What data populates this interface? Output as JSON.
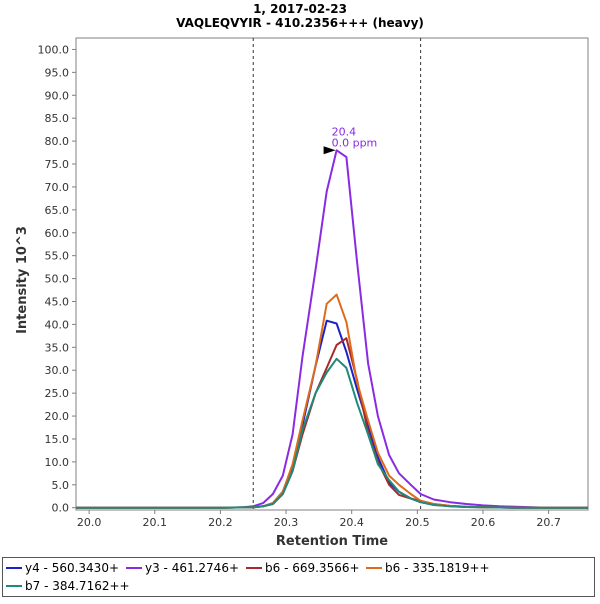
{
  "chart_data": {
    "type": "line",
    "title": "1, 2017-02-23",
    "subtitle": "VAQLEQVYIR - 410.2356+++ (heavy)",
    "xlabel": "Retention Time",
    "ylabel": "Intensity 10^3",
    "xlim": [
      19.98,
      20.76
    ],
    "ylim": [
      -0.5,
      102.5
    ],
    "xticks": [
      "20.0",
      "20.1",
      "20.2",
      "20.3",
      "20.4",
      "20.5",
      "20.6",
      "20.7"
    ],
    "yticks": [
      "0.0",
      "5.0",
      "10.0",
      "15.0",
      "20.0",
      "25.0",
      "30.0",
      "35.0",
      "40.0",
      "45.0",
      "50.0",
      "55.0",
      "60.0",
      "65.0",
      "70.0",
      "75.0",
      "80.0",
      "85.0",
      "90.0",
      "95.0",
      "100.0"
    ],
    "integration_boundaries": [
      20.25,
      20.505
    ],
    "grid": false,
    "legend_position": "bottom",
    "peak_annotation": {
      "x": 20.377,
      "y": 78.0,
      "rt_label": "20.4",
      "ppm_label": "0.0 ppm",
      "color": "#8A2BE2"
    },
    "series": [
      {
        "name": "y4 - 560.3430+",
        "color": "#1A23C8",
        "x": [
          19.98,
          20.0,
          20.1,
          20.2,
          20.25,
          20.265,
          20.28,
          20.295,
          20.31,
          20.325,
          20.345,
          20.362,
          20.377,
          20.392,
          20.408,
          20.425,
          20.44,
          20.457,
          20.472,
          20.49,
          20.505,
          20.525,
          20.55,
          20.575,
          20.6,
          20.625,
          20.65,
          20.7,
          20.76
        ],
        "values": [
          0,
          0,
          0,
          0,
          0.1,
          0.3,
          1.0,
          3.5,
          9.0,
          18.0,
          31.0,
          40.8,
          40.2,
          34.0,
          26.0,
          18.0,
          11.0,
          5.5,
          3.5,
          2.0,
          1.2,
          0.7,
          0.3,
          0.15,
          0.1,
          0.05,
          0,
          0,
          0
        ]
      },
      {
        "name": "y3 - 461.2746+",
        "color": "#8A2BE2",
        "x": [
          19.98,
          20.0,
          20.1,
          20.2,
          20.235,
          20.25,
          20.265,
          20.28,
          20.295,
          20.31,
          20.325,
          20.345,
          20.362,
          20.377,
          20.392,
          20.408,
          20.425,
          20.44,
          20.457,
          20.472,
          20.49,
          20.505,
          20.525,
          20.55,
          20.575,
          20.6,
          20.625,
          20.65,
          20.7,
          20.76
        ],
        "values": [
          0,
          0,
          0,
          0,
          0.1,
          0.3,
          1.0,
          3.0,
          7.0,
          16.0,
          33.0,
          52.0,
          69.0,
          78.0,
          76.5,
          54.0,
          31.5,
          20.0,
          11.5,
          7.5,
          5.0,
          3.0,
          1.8,
          1.2,
          0.8,
          0.5,
          0.3,
          0.2,
          0,
          0
        ]
      },
      {
        "name": "b6 - 669.3566+",
        "color": "#A52A2A",
        "x": [
          19.98,
          20.0,
          20.1,
          20.2,
          20.25,
          20.265,
          20.28,
          20.295,
          20.31,
          20.325,
          20.345,
          20.362,
          20.377,
          20.392,
          20.408,
          20.425,
          20.44,
          20.457,
          20.472,
          20.49,
          20.505,
          20.525,
          20.55,
          20.575,
          20.6,
          20.65,
          20.7,
          20.76
        ],
        "values": [
          0,
          0,
          0,
          0,
          0.1,
          0.3,
          0.8,
          3.0,
          8.0,
          16.0,
          25.0,
          30.5,
          35.5,
          37.0,
          28.0,
          16.5,
          10.0,
          5.0,
          2.8,
          2.0,
          1.5,
          0.8,
          0.4,
          0.2,
          0.1,
          0,
          0,
          0
        ]
      },
      {
        "name": "b6 - 335.1819++",
        "color": "#E06A1B",
        "x": [
          19.98,
          20.0,
          20.1,
          20.2,
          20.25,
          20.265,
          20.28,
          20.295,
          20.31,
          20.325,
          20.345,
          20.362,
          20.377,
          20.392,
          20.408,
          20.425,
          20.44,
          20.457,
          20.472,
          20.49,
          20.505,
          20.525,
          20.55,
          20.575,
          20.6,
          20.65,
          20.7,
          20.76
        ],
        "values": [
          0,
          0,
          0,
          0,
          0.1,
          0.3,
          1.0,
          3.5,
          9.5,
          19.0,
          31.0,
          44.5,
          46.5,
          40.5,
          27.5,
          19.0,
          12.0,
          7.0,
          5.0,
          3.0,
          1.5,
          0.8,
          0.4,
          0.2,
          0.1,
          0,
          0,
          0
        ]
      },
      {
        "name": "b7 - 384.7162++",
        "color": "#1E8A7A",
        "x": [
          19.98,
          20.0,
          20.1,
          20.2,
          20.25,
          20.265,
          20.28,
          20.295,
          20.31,
          20.325,
          20.345,
          20.362,
          20.377,
          20.392,
          20.408,
          20.425,
          20.44,
          20.457,
          20.472,
          20.49,
          20.505,
          20.525,
          20.55,
          20.575,
          20.6,
          20.65,
          20.7,
          20.76
        ],
        "values": [
          0,
          0,
          0,
          0,
          0.1,
          0.3,
          0.8,
          3.0,
          8.0,
          17.0,
          25.0,
          29.5,
          32.5,
          30.5,
          23.0,
          16.0,
          9.5,
          6.0,
          3.5,
          2.0,
          1.2,
          0.6,
          0.3,
          0.15,
          0.1,
          0,
          0,
          0
        ]
      }
    ]
  }
}
